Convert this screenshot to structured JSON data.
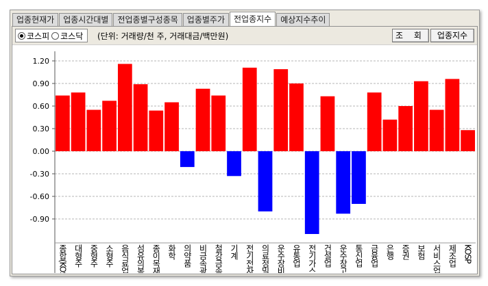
{
  "tabs": [
    {
      "label": "업종현재가",
      "active": false
    },
    {
      "label": "업종시간대별",
      "active": false
    },
    {
      "label": "전업종별구성종목",
      "active": false
    },
    {
      "label": "업종별주가",
      "active": false
    },
    {
      "label": "전업종지수",
      "active": true
    },
    {
      "label": "예상지수추이",
      "active": false
    }
  ],
  "toolbar": {
    "market_options": [
      {
        "label": "코스피",
        "selected": true
      },
      {
        "label": "코스닥",
        "selected": false
      }
    ],
    "unit_text": "(단위: 거래량/천 주, 거래대금/백만원)",
    "query_label": "조 회",
    "index_label": "업종지수"
  },
  "chart_data": {
    "type": "bar",
    "ylim": [
      -1.2,
      1.2
    ],
    "yticks": [
      1.2,
      0.9,
      0.6,
      0.3,
      0.0,
      -0.3,
      -0.6,
      -0.9
    ],
    "ytick_labels": [
      "1.20",
      "0.90",
      "0.60",
      "0.30",
      "0.00",
      "-0.30",
      "-0.60",
      "-0.90"
    ],
    "positive_color": "#ff0000",
    "negative_color": "#0000ff",
    "grid": true,
    "categories": [
      "종합(KOSP",
      "대형주",
      "중형주",
      "소형주",
      "음식료업",
      "섬유의복",
      "종이목재",
      "화학",
      "의약품",
      "비금속광",
      "철강금속",
      "기계",
      "전기전자",
      "의료정밀",
      "운수장비",
      "유통업",
      "전기가스",
      "건설업",
      "운수창고",
      "통신업",
      "금융업",
      "은행",
      "증권",
      "보험",
      "서비스업",
      "제조업",
      "KOSP"
    ],
    "values": [
      0.74,
      0.78,
      0.55,
      0.67,
      1.16,
      0.89,
      0.54,
      0.65,
      -0.21,
      0.83,
      0.74,
      -0.33,
      1.11,
      -0.8,
      1.09,
      0.9,
      -1.1,
      0.73,
      -0.83,
      -0.7,
      0.78,
      0.42,
      0.6,
      0.93,
      0.55,
      0.96,
      0.28
    ]
  }
}
